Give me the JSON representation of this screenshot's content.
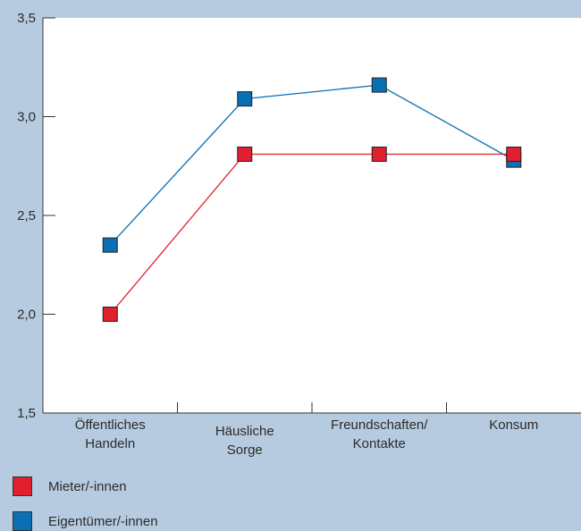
{
  "chart_data": {
    "type": "line",
    "title": "",
    "xlabel": "",
    "ylabel": "",
    "categories": [
      [
        "Öffentliches",
        "Handeln"
      ],
      [
        "Häusliche",
        "Sorge"
      ],
      [
        "Freundschaften/",
        "Kontakte"
      ],
      [
        "Konsum"
      ]
    ],
    "y_ticks": [
      "3,5",
      "3,0",
      "2,5",
      "2,0",
      "1,5"
    ],
    "ylim": [
      1.5,
      3.5
    ],
    "grid": false,
    "legend_position": "bottom-left",
    "series": [
      {
        "name": "Eigentümer/-innen",
        "color": "#0a6fb5",
        "values": [
          2.35,
          3.09,
          3.16,
          2.78
        ]
      },
      {
        "name": "Mieter/-innen",
        "color": "#e0202e",
        "values": [
          2.0,
          2.81,
          2.81,
          2.81
        ]
      }
    ]
  },
  "legend": {
    "renters_label": "Mieter/-innen",
    "owners_label": "Eigentümer/-innen",
    "renters_color": "#e0202e",
    "owners_color": "#0a6fb5"
  }
}
